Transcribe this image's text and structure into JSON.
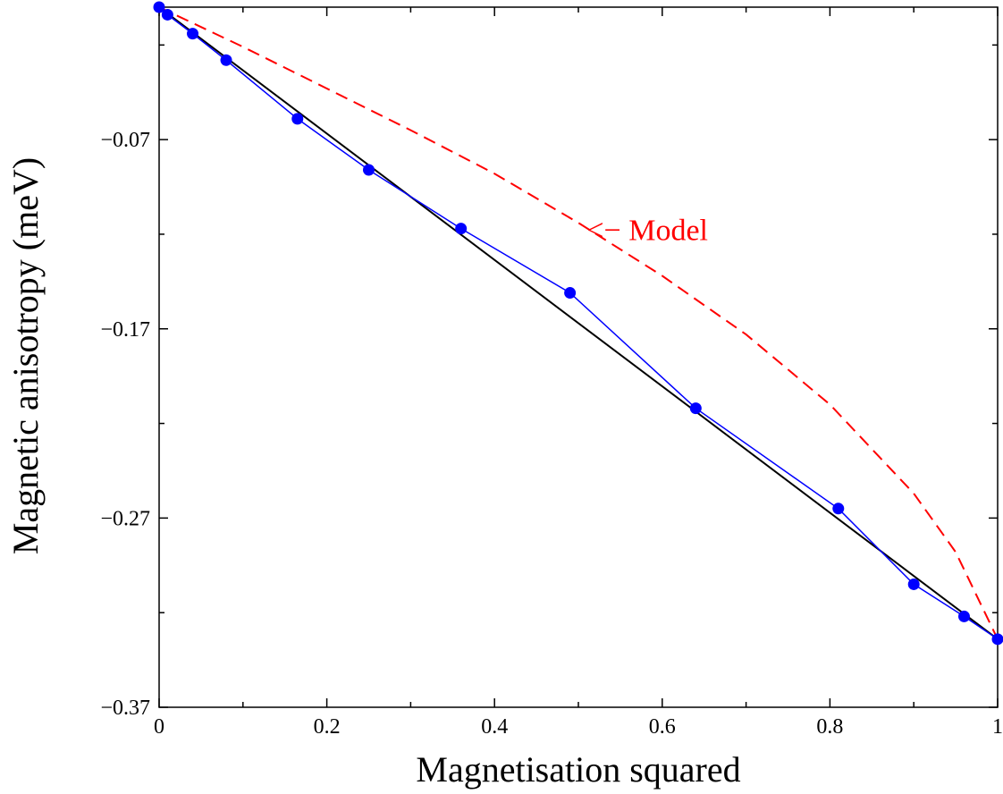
{
  "chart_data": {
    "type": "line",
    "title": "",
    "xlabel": "Magnetisation squared",
    "ylabel": "Magnetic anisotropy (meV)",
    "xlim": [
      0,
      1
    ],
    "ylim": [
      -0.37,
      0.0
    ],
    "x_ticks": [
      0,
      0.2,
      0.4,
      0.6,
      0.8,
      1
    ],
    "x_tick_labels": [
      "0",
      "0.2",
      "0.4",
      "0.6",
      "0.8",
      "1"
    ],
    "y_ticks": [
      -0.07,
      -0.17,
      -0.27,
      -0.37
    ],
    "y_tick_labels": [
      "−0.07",
      "−0.17",
      "−0.27",
      "−0.37"
    ],
    "grid": false,
    "annotation": {
      "text": "<− Model",
      "x": 0.51,
      "y": -0.118
    },
    "series": [
      {
        "style": "line-markers",
        "color": "#0000ff",
        "x": [
          0,
          0.01,
          0.04,
          0.08,
          0.165,
          0.25,
          0.36,
          0.49,
          0.64,
          0.81,
          0.9,
          0.96,
          1.0
        ],
        "y": [
          0.0,
          -0.004,
          -0.014,
          -0.028,
          -0.059,
          -0.086,
          -0.117,
          -0.151,
          -0.212,
          -0.265,
          -0.305,
          -0.322,
          -0.334
        ]
      },
      {
        "style": "solid",
        "color": "#000000",
        "x": [
          0,
          1
        ],
        "y": [
          0.0,
          -0.334
        ]
      },
      {
        "name": "Model",
        "style": "dashed",
        "color": "#ff0000",
        "x": [
          0,
          0.1,
          0.2,
          0.3,
          0.4,
          0.5,
          0.6,
          0.7,
          0.8,
          0.9,
          0.95,
          1.0
        ],
        "y": [
          0.0,
          -0.021,
          -0.043,
          -0.065,
          -0.088,
          -0.114,
          -0.142,
          -0.173,
          -0.21,
          -0.257,
          -0.288,
          -0.334
        ]
      }
    ]
  }
}
